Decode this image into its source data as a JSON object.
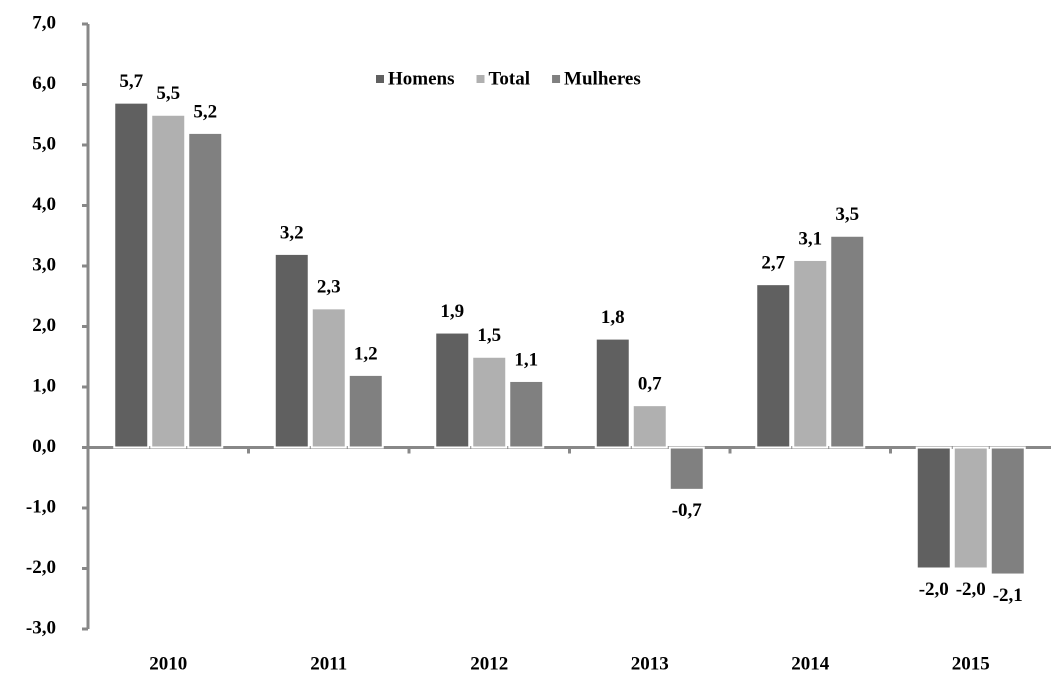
{
  "chart_data": {
    "type": "bar",
    "categories": [
      "2010",
      "2011",
      "2012",
      "2013",
      "2014",
      "2015"
    ],
    "series": [
      {
        "name": "Homens",
        "color": "#606060",
        "values": [
          5.7,
          3.2,
          1.9,
          1.8,
          2.7,
          -2.0
        ],
        "value_labels": [
          "5,7",
          "3,2",
          "1,9",
          "1,8",
          "2,7",
          "-2,0"
        ]
      },
      {
        "name": "Total",
        "color": "#b0b0b0",
        "values": [
          5.5,
          2.3,
          1.5,
          0.7,
          3.1,
          -2.0
        ],
        "value_labels": [
          "5,5",
          "2,3",
          "1,5",
          "0,7",
          "3,1",
          "-2,0"
        ]
      },
      {
        "name": "Mulheres",
        "color": "#808080",
        "values": [
          5.2,
          1.2,
          1.1,
          -0.7,
          3.5,
          -2.1
        ],
        "value_labels": [
          "5,2",
          "1,2",
          "1,1",
          "-0,7",
          "3,5",
          "-2,1"
        ]
      }
    ],
    "ylim": [
      -3,
      7
    ],
    "yticks": [
      {
        "value": -3,
        "label": "-3,0"
      },
      {
        "value": -2,
        "label": "-2,0"
      },
      {
        "value": -1,
        "label": "-1,0"
      },
      {
        "value": 0,
        "label": "0,0"
      },
      {
        "value": 1,
        "label": "1,0"
      },
      {
        "value": 2,
        "label": "2,0"
      },
      {
        "value": 3,
        "label": "3,0"
      },
      {
        "value": 4,
        "label": "4,0"
      },
      {
        "value": 5,
        "label": "5,0"
      },
      {
        "value": 6,
        "label": "6,0"
      },
      {
        "value": 7,
        "label": "7,0"
      }
    ],
    "grid": false,
    "legend": "top"
  }
}
